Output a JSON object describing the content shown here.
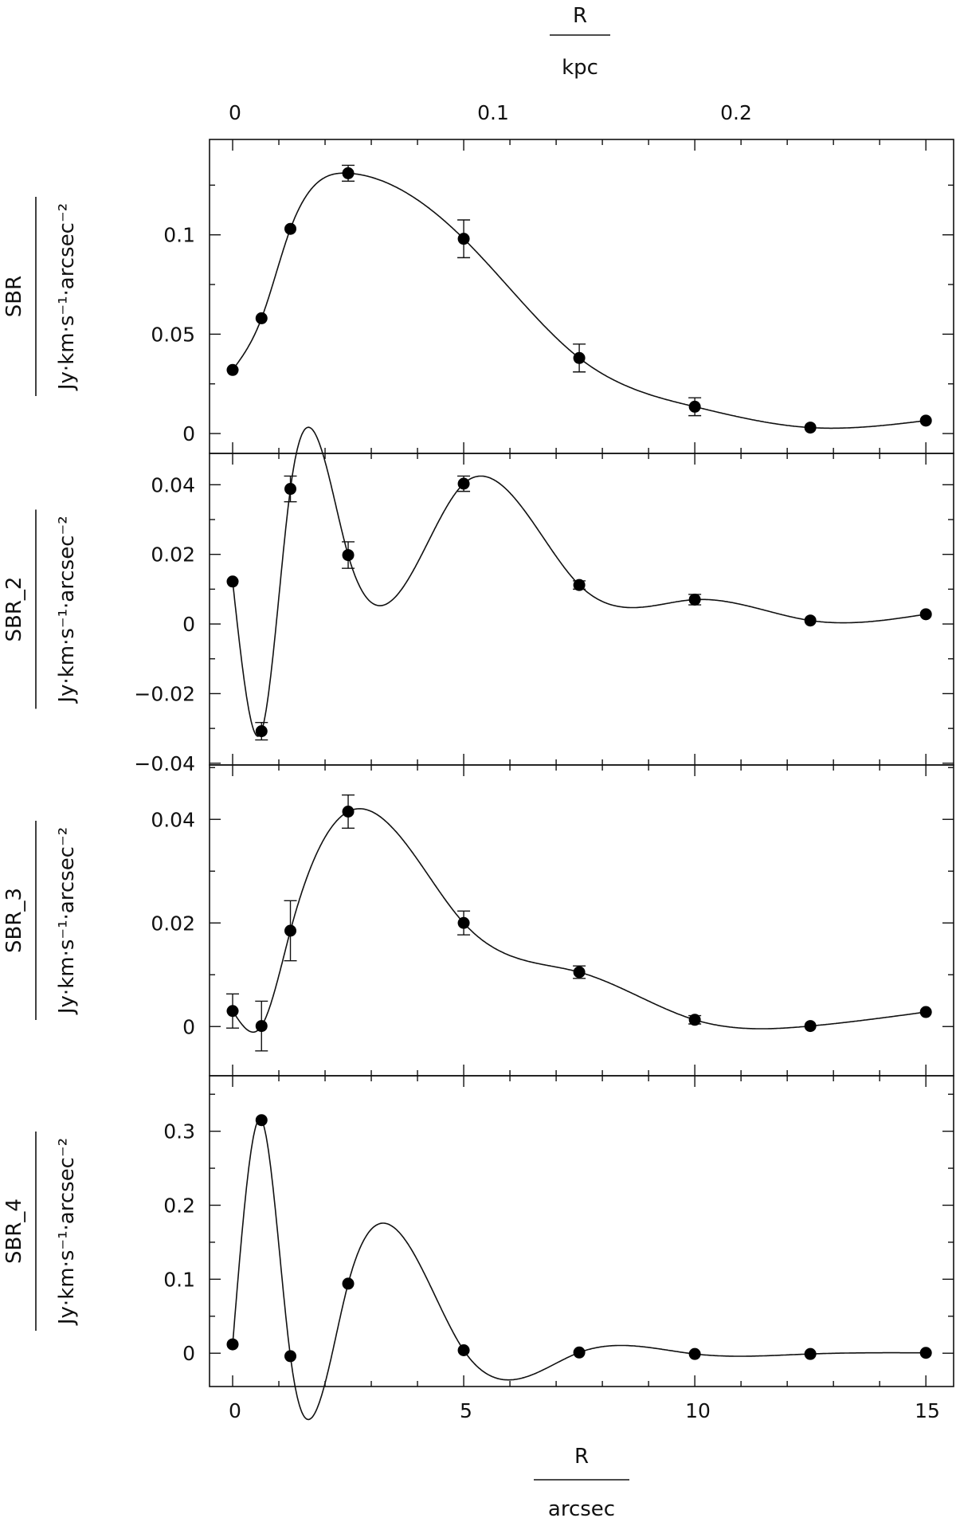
{
  "chart_data": {
    "type": "scatter",
    "x_axis_bottom": {
      "label_num": "R",
      "label_den": "arcsec",
      "range": [
        -0.5,
        15.6
      ],
      "ticks": [
        0,
        5,
        10,
        15
      ],
      "tick_labels": [
        "0",
        "5",
        "10",
        "15"
      ]
    },
    "x_axis_top": {
      "label_num": "R",
      "label_den": "kpc",
      "tick_labels": [
        "0",
        "0.1",
        "0.2"
      ],
      "ticks_arcsec": [
        0,
        5.6,
        11.2
      ]
    },
    "x": [
      0,
      0.625,
      1.25,
      2.5,
      5,
      7.5,
      10,
      12.5,
      15
    ],
    "panels": [
      {
        "ylabel_num": "SBR",
        "ylabel_den": "Jy·km·s⁻¹·arcsec⁻²",
        "ylim": [
          -0.01,
          0.148
        ],
        "yticks": [
          0,
          0.05,
          0.1
        ],
        "ytick_labels": [
          "0",
          "0.05",
          "0.1"
        ],
        "y": [
          0.032,
          0.058,
          0.103,
          0.131,
          0.098,
          0.038,
          0.0135,
          0.003,
          0.0065
        ],
        "err": [
          0,
          0,
          0,
          0.004,
          0.0095,
          0.007,
          0.0045,
          0,
          0
        ]
      },
      {
        "ylabel_num": "SBR_2",
        "ylabel_den": "Jy·km·s⁻¹·arcsec⁻²",
        "ylim": [
          -0.0405,
          0.049
        ],
        "yticks": [
          -0.04,
          -0.02,
          0,
          0.02,
          0.04
        ],
        "ytick_labels": [
          "−0.04",
          "−0.02",
          "0",
          "0.02",
          "0.04"
        ],
        "y": [
          0.0122,
          -0.0308,
          0.0388,
          0.0198,
          0.0403,
          0.0112,
          0.007,
          0.001,
          0.0028
        ],
        "err": [
          0,
          0.0025,
          0.0037,
          0.0038,
          0.0022,
          0.0012,
          0.0015,
          0,
          0
        ]
      },
      {
        "ylabel_num": "SBR_3",
        "ylabel_den": "Jy·km·s⁻¹·arcsec⁻²",
        "ylim": [
          -0.0095,
          0.0505
        ],
        "yticks": [
          0,
          0.02,
          0.04
        ],
        "ytick_labels": [
          "0",
          "0.02",
          "0.04"
        ],
        "y": [
          0.003,
          0.0001,
          0.0185,
          0.0415,
          0.02,
          0.0105,
          0.0013,
          0.0001,
          0.0028
        ],
        "err": [
          0.0033,
          0.0048,
          0.0058,
          0.0032,
          0.0023,
          0.0012,
          0.0008,
          0,
          0
        ]
      },
      {
        "ylabel_num": "SBR_4",
        "ylabel_den": "Jy·km·s⁻¹·arcsec⁻²",
        "ylim": [
          -0.045,
          0.375
        ],
        "yticks": [
          0,
          0.1,
          0.2,
          0.3
        ],
        "ytick_labels": [
          "0",
          "0.1",
          "0.2",
          "0.3"
        ],
        "y": [
          0.012,
          0.315,
          -0.004,
          0.094,
          0.004,
          0.001,
          -0.001,
          -0.001,
          0.0005
        ],
        "err": [
          0,
          0,
          0,
          0,
          0,
          0,
          0,
          0,
          0
        ]
      }
    ],
    "grid": false
  }
}
